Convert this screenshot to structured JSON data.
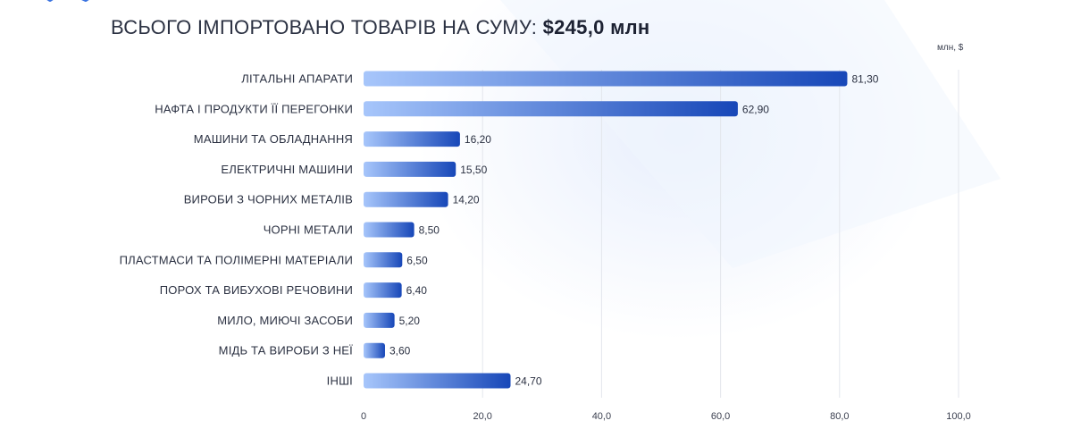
{
  "header": {
    "title_prefix": "ВСЬОГО ІМПОРТОВАНО ТОВАРІВ НА СУМУ:",
    "title_value": "$245,0 млн",
    "unit": "млн, $"
  },
  "chart_data": {
    "type": "bar",
    "orientation": "horizontal",
    "categories": [
      "ЛІТАЛЬНІ АПАРАТИ",
      "НАФТА І ПРОДУКТИ ЇЇ ПЕРЕГОНКИ",
      "МАШИНИ ТА ОБЛАДНАННЯ",
      "ЕЛЕКТРИЧНІ МАШИНИ",
      "ВИРОБИ З ЧОРНИХ МЕТАЛІВ",
      "ЧОРНІ МЕТАЛИ",
      "ПЛАСТМАСИ ТА ПОЛІМЕРНІ МАТЕРІАЛИ",
      "ПОРОХ ТА ВИБУХОВІ РЕЧОВИНИ",
      "МИЛО, МИЮЧІ ЗАСОБИ",
      "МІДЬ ТА ВИРОБИ З НЕЇ",
      "ІНШІ"
    ],
    "values": [
      81.3,
      62.9,
      16.2,
      15.5,
      14.2,
      8.5,
      6.5,
      6.4,
      5.2,
      3.6,
      24.7
    ],
    "value_labels": [
      "81,30",
      "62,90",
      "16,20",
      "15,50",
      "14,20",
      "8,50",
      "6,50",
      "6,40",
      "5,20",
      "3,60",
      "24,70"
    ],
    "xlim": [
      0,
      100
    ],
    "xticks": [
      0,
      20,
      40,
      60,
      80,
      100
    ],
    "xtick_labels": [
      "0",
      "20,0",
      "40,0",
      "60,0",
      "80,0",
      "100,0"
    ],
    "grid": "vertical",
    "colors": {
      "bar_start": "#a7c6fb",
      "bar_end": "#1747b8",
      "grid": "#e3e6ec",
      "text": "#2b3142"
    }
  }
}
